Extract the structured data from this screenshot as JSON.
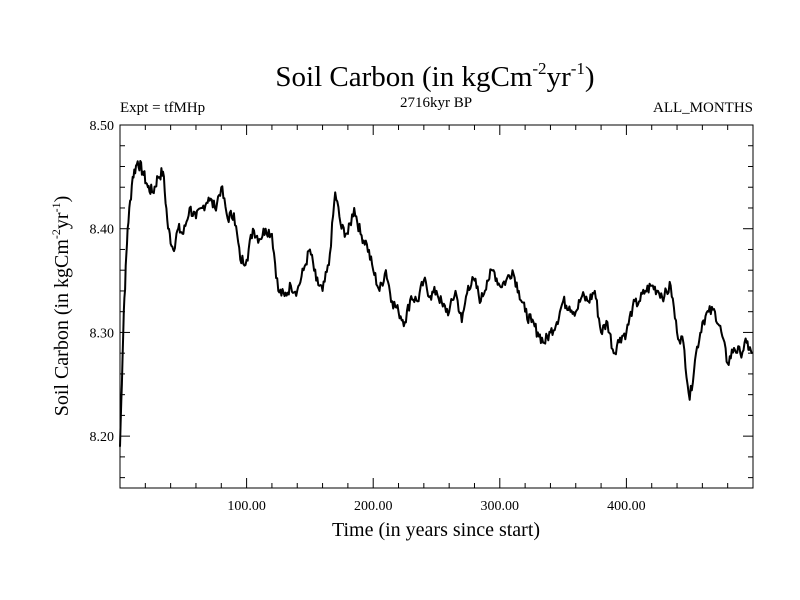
{
  "chart_data": {
    "type": "line",
    "title": "Soil Carbon (in kgCm",
    "title_unit_exp1": "-2",
    "title_unit_mid": "yr",
    "title_unit_exp2": "-1",
    "title_close": ")",
    "subtitle_left": "Expt = tfMHp",
    "subtitle_center": "2716kyr BP",
    "subtitle_right": "ALL_MONTHS",
    "xlabel": "Time (in years since start)",
    "ylabel": "Soil Carbon (in kgCm",
    "ylabel_exp1": "-2",
    "ylabel_mid": "yr",
    "ylabel_exp2": "-1",
    "ylabel_close": ")",
    "xlim": [
      0,
      500
    ],
    "ylim": [
      8.15,
      8.5
    ],
    "x_ticks": [
      100,
      200,
      300,
      400
    ],
    "x_tick_labels": [
      "100.00",
      "200.00",
      "300.00",
      "400.00"
    ],
    "y_ticks": [
      8.2,
      8.3,
      8.4,
      8.5
    ],
    "y_tick_labels": [
      "8.20",
      "8.30",
      "8.40",
      "8.50"
    ],
    "line_color": "#000000",
    "x": [
      0,
      3,
      6,
      10,
      14,
      18,
      22,
      26,
      30,
      34,
      38,
      42,
      46,
      50,
      55,
      60,
      65,
      70,
      75,
      80,
      85,
      90,
      95,
      100,
      105,
      110,
      115,
      120,
      125,
      130,
      135,
      140,
      145,
      150,
      155,
      160,
      165,
      170,
      175,
      180,
      185,
      190,
      195,
      200,
      205,
      210,
      215,
      220,
      225,
      230,
      235,
      240,
      245,
      250,
      255,
      260,
      265,
      270,
      275,
      280,
      285,
      290,
      295,
      300,
      305,
      310,
      315,
      320,
      325,
      330,
      335,
      340,
      345,
      350,
      355,
      360,
      365,
      370,
      375,
      380,
      385,
      390,
      395,
      400,
      405,
      410,
      415,
      420,
      425,
      430,
      435,
      440,
      445,
      450,
      455,
      460,
      465,
      470,
      475,
      480,
      485,
      490,
      495,
      499
    ],
    "values": [
      8.19,
      8.32,
      8.4,
      8.45,
      8.465,
      8.455,
      8.44,
      8.435,
      8.45,
      8.455,
      8.4,
      8.38,
      8.4,
      8.395,
      8.42,
      8.41,
      8.42,
      8.43,
      8.42,
      8.44,
      8.41,
      8.415,
      8.37,
      8.37,
      8.4,
      8.39,
      8.4,
      8.395,
      8.34,
      8.335,
      8.345,
      8.34,
      8.36,
      8.38,
      8.35,
      8.34,
      8.365,
      8.435,
      8.4,
      8.395,
      8.42,
      8.395,
      8.385,
      8.36,
      8.34,
      8.36,
      8.33,
      8.32,
      8.31,
      8.335,
      8.33,
      8.35,
      8.335,
      8.34,
      8.325,
      8.32,
      8.34,
      8.31,
      8.345,
      8.35,
      8.33,
      8.35,
      8.36,
      8.345,
      8.35,
      8.36,
      8.34,
      8.32,
      8.31,
      8.3,
      8.29,
      8.3,
      8.31,
      8.33,
      8.325,
      8.32,
      8.335,
      8.33,
      8.34,
      8.3,
      8.31,
      8.28,
      8.295,
      8.3,
      8.325,
      8.33,
      8.34,
      8.345,
      8.34,
      8.335,
      8.345,
      8.3,
      8.29,
      8.235,
      8.28,
      8.31,
      8.32,
      8.32,
      8.3,
      8.27,
      8.285,
      8.28,
      8.29,
      8.28
    ]
  }
}
